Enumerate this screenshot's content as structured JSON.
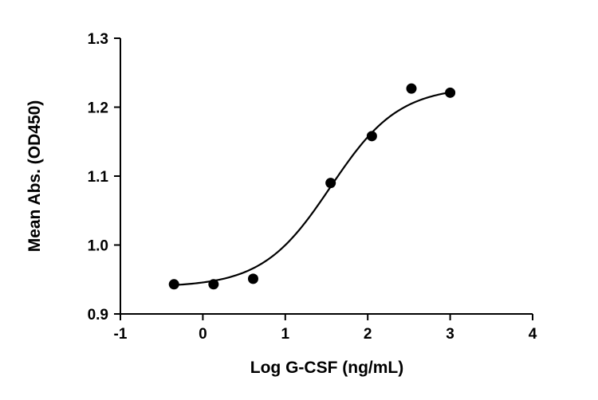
{
  "chart_data": {
    "type": "scatter",
    "title": "",
    "xlabel": "Log G-CSF (ng/mL)",
    "ylabel": "Mean  Abs. (OD450)",
    "xlim": [
      -1,
      4
    ],
    "ylim": [
      0.9,
      1.3
    ],
    "xticks": [
      "-1",
      "0",
      "1",
      "2",
      "3",
      "4"
    ],
    "yticks": [
      "0.9",
      "1.0",
      "1.1",
      "1.2",
      "1.3"
    ],
    "grid": false,
    "legend": "none",
    "points": [
      {
        "x": -0.35,
        "y": 0.943
      },
      {
        "x": 0.13,
        "y": 0.943
      },
      {
        "x": 0.61,
        "y": 0.951
      },
      {
        "x": 1.55,
        "y": 1.09
      },
      {
        "x": 2.05,
        "y": 1.158
      },
      {
        "x": 2.53,
        "y": 1.227
      },
      {
        "x": 3.0,
        "y": 1.221
      }
    ],
    "fit": {
      "model": "4PL",
      "bottom": 0.939,
      "top": 1.23,
      "logEC50": 1.55,
      "hill": 1.05,
      "x_range": [
        -0.35,
        3.0
      ]
    },
    "colors": {
      "marks": "#000000",
      "axes": "#000000",
      "background": "#ffffff"
    }
  }
}
